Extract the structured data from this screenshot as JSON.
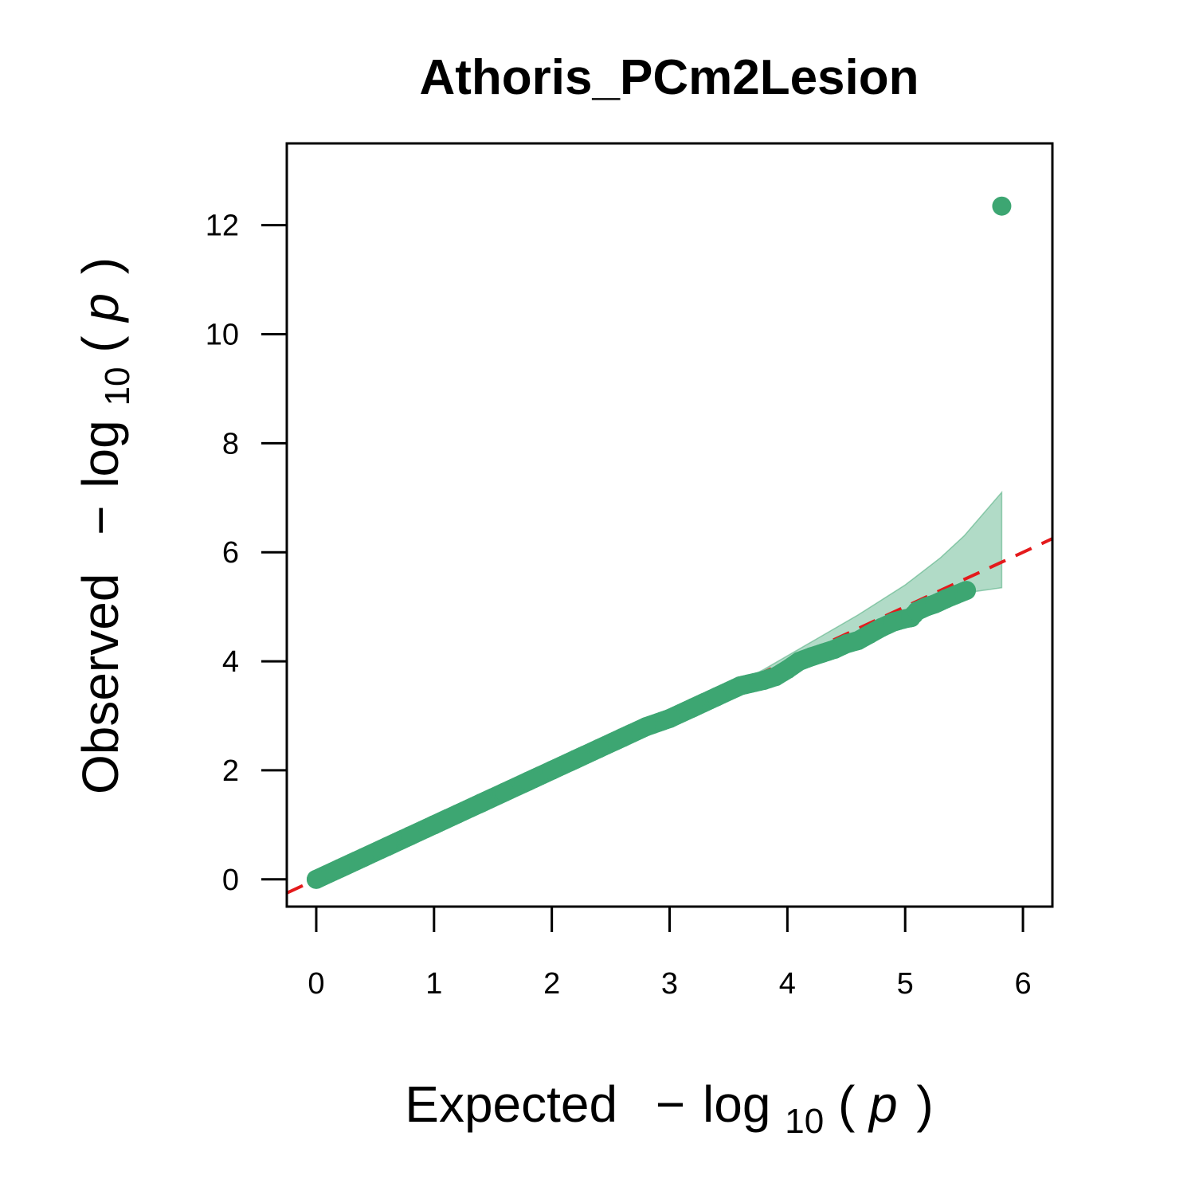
{
  "chart_data": {
    "type": "scatter",
    "title": "Athoris_PCm2Lesion",
    "xlabel": {
      "prefix": "Expected",
      "minus": "−",
      "log": "log",
      "base": "10",
      "open": "(",
      "var": "p",
      "close": ")"
    },
    "ylabel": {
      "prefix": "Observed",
      "minus": "−",
      "log": "log",
      "base": "10",
      "open": "(",
      "var": "p",
      "close": ")"
    },
    "x_ticks": [
      0,
      1,
      2,
      3,
      4,
      5,
      6
    ],
    "y_ticks": [
      0,
      2,
      4,
      6,
      8,
      10,
      12
    ],
    "xlim": [
      -0.25,
      6.25
    ],
    "ylim": [
      -0.5,
      13.5
    ],
    "grid": false,
    "point_color": "#3DA672",
    "ci_color": "#3DA672",
    "reference_line_color": "#E41A1C",
    "reference_line": {
      "slope": 1,
      "intercept": 0
    },
    "confidence_band": {
      "upper": [
        [
          3.4,
          3.4
        ],
        [
          3.8,
          3.85
        ],
        [
          4.2,
          4.35
        ],
        [
          4.6,
          4.85
        ],
        [
          5.0,
          5.4
        ],
        [
          5.3,
          5.9
        ],
        [
          5.5,
          6.3
        ],
        [
          5.82,
          7.1
        ]
      ],
      "lower": [
        [
          3.4,
          3.4
        ],
        [
          3.8,
          3.75
        ],
        [
          4.2,
          4.1
        ],
        [
          4.6,
          4.5
        ],
        [
          5.0,
          4.85
        ],
        [
          5.3,
          5.1
        ],
        [
          5.5,
          5.25
        ],
        [
          5.82,
          5.35
        ]
      ]
    },
    "points": [
      [
        0.0,
        0.0
      ],
      [
        0.2,
        0.2
      ],
      [
        0.4,
        0.4
      ],
      [
        0.6,
        0.6
      ],
      [
        0.8,
        0.8
      ],
      [
        1.0,
        1.0
      ],
      [
        1.2,
        1.2
      ],
      [
        1.4,
        1.4
      ],
      [
        1.6,
        1.6
      ],
      [
        1.8,
        1.8
      ],
      [
        2.0,
        2.0
      ],
      [
        2.2,
        2.2
      ],
      [
        2.4,
        2.4
      ],
      [
        2.6,
        2.6
      ],
      [
        2.8,
        2.8
      ],
      [
        3.0,
        2.95
      ],
      [
        3.2,
        3.15
      ],
      [
        3.4,
        3.35
      ],
      [
        3.6,
        3.55
      ],
      [
        3.8,
        3.65
      ],
      [
        3.9,
        3.72
      ],
      [
        4.0,
        3.85
      ],
      [
        4.1,
        4.0
      ],
      [
        4.2,
        4.08
      ],
      [
        4.3,
        4.15
      ],
      [
        4.4,
        4.22
      ],
      [
        4.5,
        4.32
      ],
      [
        4.6,
        4.38
      ],
      [
        4.7,
        4.5
      ],
      [
        4.8,
        4.62
      ],
      [
        4.9,
        4.72
      ],
      [
        5.0,
        4.78
      ],
      [
        5.05,
        4.8
      ],
      [
        5.1,
        4.92
      ],
      [
        5.18,
        5.0
      ],
      [
        5.25,
        5.05
      ],
      [
        5.35,
        5.15
      ],
      [
        5.52,
        5.3
      ],
      [
        5.82,
        12.35
      ]
    ]
  }
}
